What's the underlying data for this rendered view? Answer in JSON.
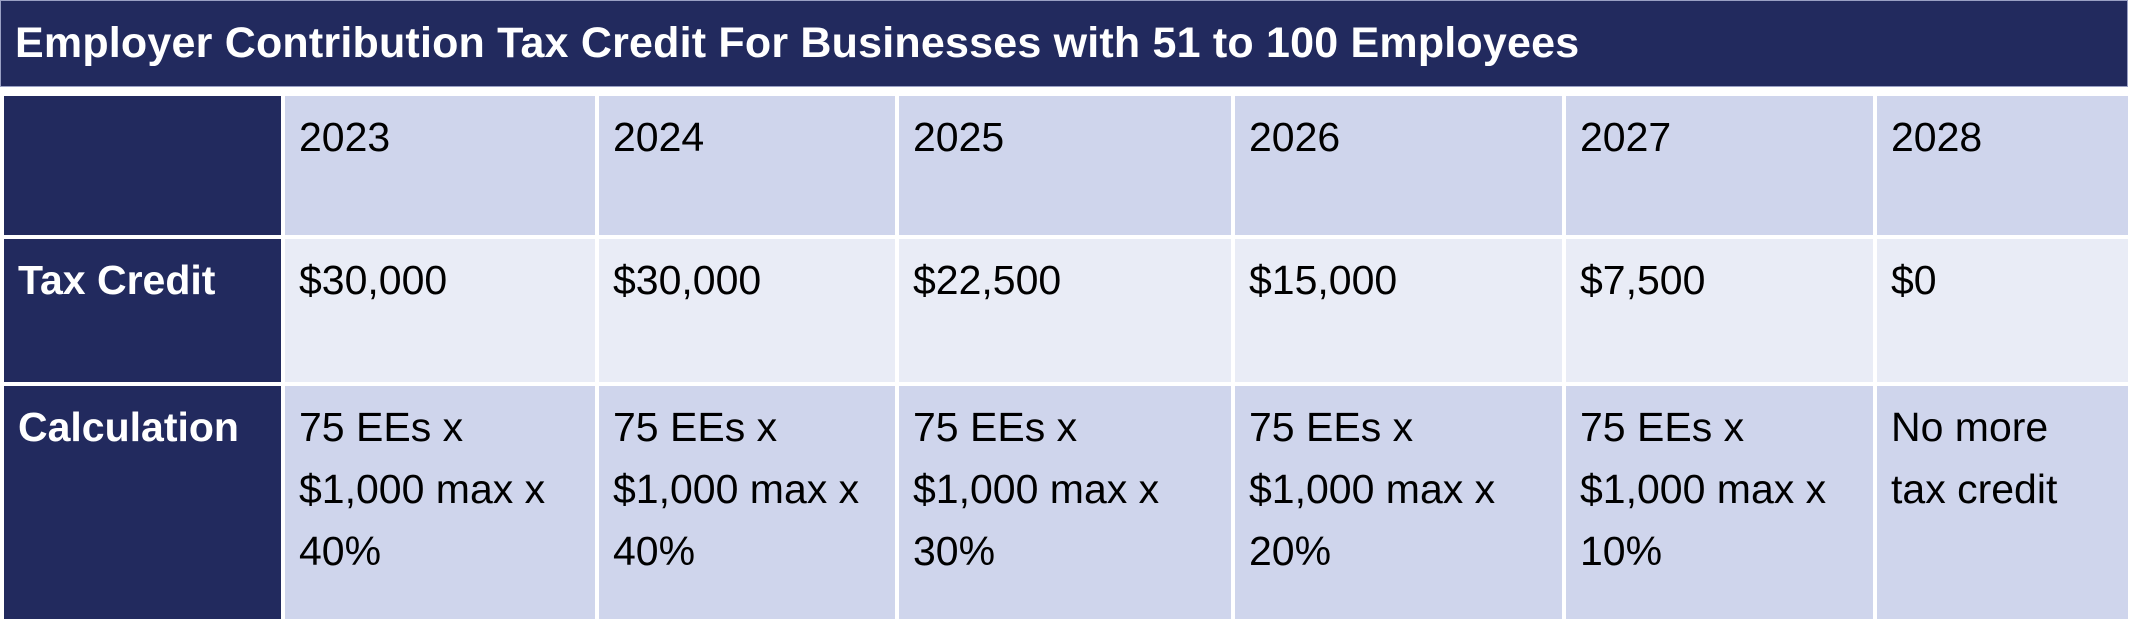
{
  "title": "Employer Contribution Tax Credit For Businesses with 51 to 100 Employees",
  "colors": {
    "navy": "#222a5e",
    "row_dark": "#cfd5ec",
    "row_light": "#e9ecf6"
  },
  "table": {
    "corner": "",
    "years": [
      "2023",
      "2024",
      "2025",
      "2026",
      "2027",
      "2028"
    ],
    "rows": {
      "tax_credit": {
        "label": "Tax Credit",
        "values": [
          "$30,000",
          "$30,000",
          "$22,500",
          "$15,000",
          "$7,500",
          "$0"
        ]
      },
      "calculation": {
        "label": "Calculation",
        "values": [
          [
            "75 EEs x",
            "$1,000 max x",
            "40%"
          ],
          [
            "75 EEs x",
            "$1,000 max x",
            "40%"
          ],
          [
            "75 EEs x",
            "$1,000 max x",
            "30%"
          ],
          [
            "75 EEs x",
            "$1,000 max x",
            "20%"
          ],
          [
            "75 EEs x",
            "$1,000 max x",
            "10%"
          ],
          [
            "No more",
            "tax credit"
          ]
        ]
      }
    }
  }
}
